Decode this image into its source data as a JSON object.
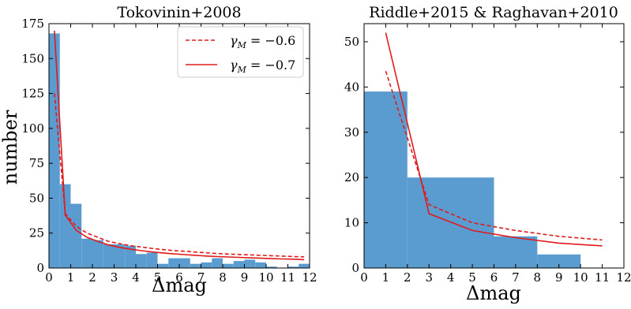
{
  "chart_data": [
    {
      "type": "bar",
      "title": "Tokovinin+2008",
      "xlabel": "Δmag",
      "ylabel": "number",
      "xlim": [
        0,
        12
      ],
      "ylim": [
        0,
        175
      ],
      "xticks": [
        "0",
        "1",
        "2",
        "3",
        "4",
        "5",
        "6",
        "7",
        "8",
        "9",
        "10",
        "11",
        "12"
      ],
      "yticks": [
        "0",
        "25",
        "50",
        "75",
        "100",
        "125",
        "150",
        "175"
      ],
      "bar_color": "#5a9bd0",
      "histogram": {
        "edges": [
          0,
          0.5,
          1,
          1.5,
          2,
          2.5,
          3,
          3.5,
          4,
          4.5,
          5,
          5.5,
          6,
          6.5,
          7,
          7.5,
          8,
          8.5,
          9,
          9.5,
          10,
          10.5,
          11,
          11.5,
          12
        ],
        "counts": [
          168,
          60,
          46,
          21,
          20,
          17,
          17,
          16,
          10,
          11,
          3,
          7,
          7,
          3,
          4,
          7,
          3,
          5,
          6,
          4,
          1,
          0,
          1,
          3
        ]
      },
      "series": [
        {
          "legend": "γ_M = −0.6",
          "style": "dashed",
          "color": "#e11a1a",
          "x": [
            0.25,
            0.75,
            1.25,
            1.75,
            2.25,
            2.75,
            3.25,
            3.75,
            4.25,
            4.75,
            5.25,
            5.75,
            6.25,
            6.75,
            7.25,
            7.75,
            8.25,
            8.75,
            9.25,
            9.75,
            10.25,
            10.75,
            11.25,
            11.75
          ],
          "y": [
            125,
            39,
            30,
            25,
            22,
            19,
            17.5,
            16,
            15,
            14,
            13.2,
            12.5,
            12,
            11.4,
            10.9,
            10.4,
            10.0,
            9.7,
            9.4,
            9.1,
            8.8,
            8.5,
            8.2,
            8.0
          ]
        },
        {
          "legend": "γ_M = −0.7",
          "style": "solid",
          "color": "#e11a1a",
          "x": [
            0.25,
            0.75,
            1.25,
            1.75,
            2.25,
            2.75,
            3.25,
            3.75,
            4.25,
            4.75,
            5.25,
            5.75,
            6.25,
            6.75,
            7.25,
            7.75,
            8.25,
            8.75,
            9.25,
            9.75,
            10.25,
            10.75,
            11.25,
            11.75
          ],
          "y": [
            170,
            38,
            27,
            22,
            19,
            16.5,
            14.8,
            13.5,
            12.4,
            11.5,
            10.8,
            10.1,
            9.6,
            9.1,
            8.6,
            8.2,
            7.9,
            7.6,
            7.3,
            7.0,
            6.7,
            6.5,
            6.3,
            6.0
          ]
        }
      ],
      "legend_entries": [
        {
          "pre": "γ",
          "sub": "M",
          "post": " = −0.6"
        },
        {
          "pre": "γ",
          "sub": "M",
          "post": " = −0.7"
        }
      ],
      "legend_position": "top-right"
    },
    {
      "type": "bar",
      "title": "Riddle+2015 & Raghavan+2010",
      "xlabel": "Δmag",
      "ylabel": "",
      "xlim": [
        0,
        12
      ],
      "ylim": [
        0,
        54
      ],
      "xticks": [
        "0",
        "1",
        "2",
        "3",
        "4",
        "5",
        "6",
        "7",
        "8",
        "9",
        "10",
        "11",
        "12"
      ],
      "yticks": [
        "0",
        "10",
        "20",
        "30",
        "40",
        "50"
      ],
      "bar_color": "#5a9bd0",
      "histogram": {
        "edges": [
          0,
          2,
          6,
          8,
          10
        ],
        "counts": [
          39,
          20,
          7,
          3
        ]
      },
      "series": [
        {
          "legend": "γ_M = −0.6",
          "style": "dashed",
          "color": "#e11a1a",
          "x": [
            1,
            3,
            5,
            7,
            9,
            11
          ],
          "y": [
            43.5,
            14,
            10,
            8.3,
            7.0,
            6.2
          ]
        },
        {
          "legend": "γ_M = −0.7",
          "style": "solid",
          "color": "#e11a1a",
          "x": [
            1,
            3,
            5,
            7,
            9,
            11
          ],
          "y": [
            52,
            12,
            8.3,
            6.7,
            5.5,
            4.9
          ]
        }
      ]
    }
  ]
}
